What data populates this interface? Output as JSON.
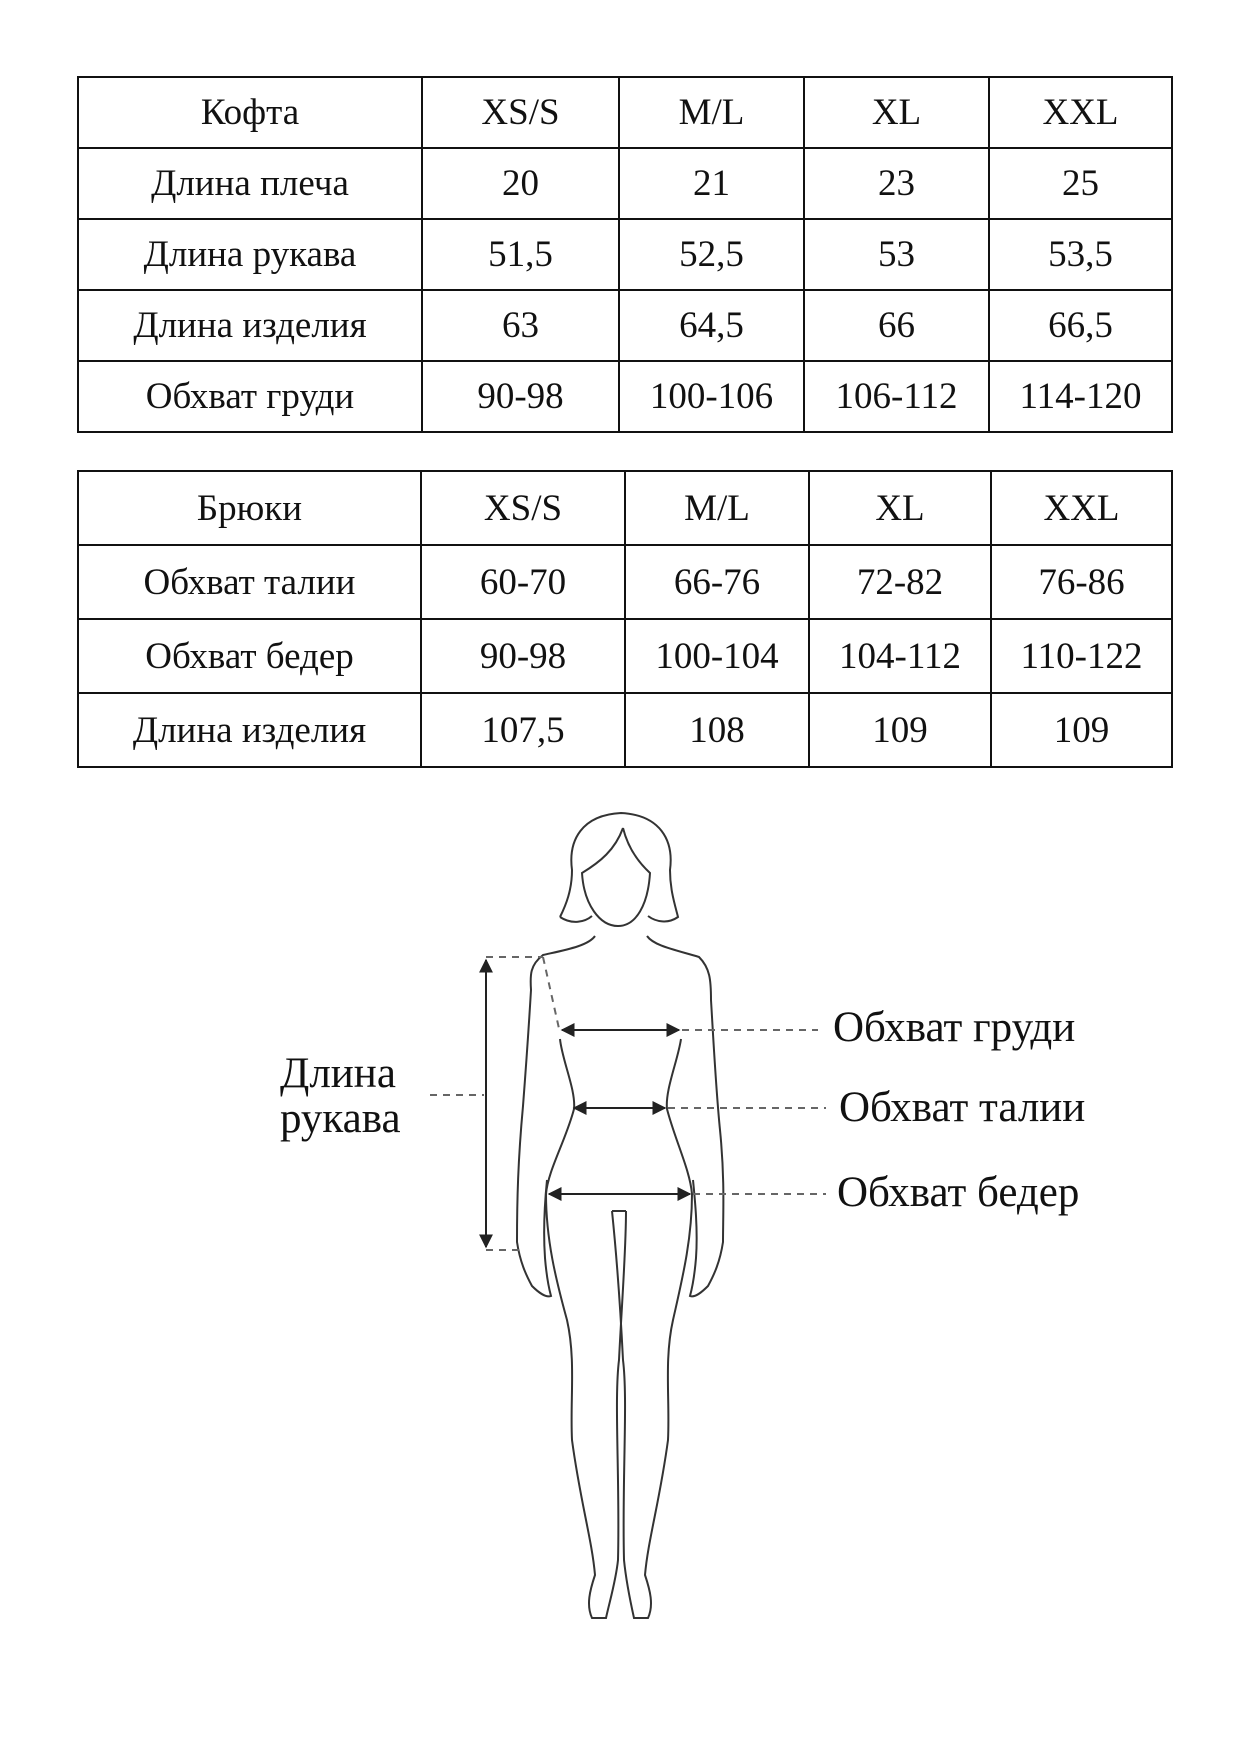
{
  "top_table": {
    "header": [
      "Кофта",
      "XS/S",
      "M/L",
      "XL",
      "XXL"
    ],
    "rows": [
      [
        "Длина плеча",
        "20",
        "21",
        "23",
        "25"
      ],
      [
        "Длина рукава",
        "51,5",
        "52,5",
        "53",
        "53,5"
      ],
      [
        "Длина изделия",
        "63",
        "64,5",
        "66",
        "66,5"
      ],
      [
        "Обхват груди",
        "90-98",
        "100-106",
        "106-112",
        "114-120"
      ]
    ]
  },
  "pants_table": {
    "header": [
      "Брюки",
      "XS/S",
      "M/L",
      "XL",
      "XXL"
    ],
    "rows": [
      [
        "Обхват талии",
        "60-70",
        "66-76",
        "72-82",
        "76-86"
      ],
      [
        "Обхват бедер",
        "90-98",
        "100-104",
        "104-112",
        "110-122"
      ],
      [
        "Длина изделия",
        "107,5",
        "108",
        "109",
        "109"
      ]
    ]
  },
  "diagram": {
    "sleeve_label_line1": "Длина",
    "sleeve_label_line2": "рукава",
    "chest_label": "Обхват груди",
    "waist_label": "Обхват талии",
    "hip_label": "Обхват бедер"
  }
}
